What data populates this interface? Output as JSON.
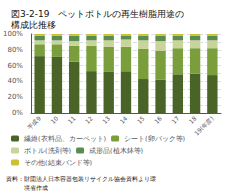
{
  "chart_data": {
    "type": "bar",
    "stacked": true,
    "title": "図3-2-19　ペットボトルの再生樹脂用途の\n構成比推移",
    "categories": [
      "平成9",
      "10",
      "11",
      "12",
      "13",
      "14",
      "15",
      "16",
      "17",
      "18",
      "19(年度)"
    ],
    "series": [
      {
        "name": "繊維(衣料品、カーペット)",
        "color": "#4a6428",
        "values": [
          72,
          71,
          65,
          53,
          52,
          53,
          43,
          42,
          49,
          50,
          48
        ]
      },
      {
        "name": "シート(卵パック等)",
        "color": "#7a9e3c",
        "values": [
          15,
          16,
          20,
          32,
          32,
          31,
          38,
          37,
          33,
          32,
          34
        ]
      },
      {
        "name": "ボトル(洗剤等)",
        "color": "#c8d49a",
        "values": [
          5,
          5,
          6,
          7,
          8,
          9,
          11,
          12,
          10,
          10,
          10
        ]
      },
      {
        "name": "成形品(植木鉢等)",
        "color": "#5a8c50",
        "values": [
          6,
          6,
          7,
          6,
          6,
          5,
          6,
          7,
          6,
          6,
          6
        ]
      },
      {
        "name": "その他(結束バンド等)",
        "color": "#ccc030",
        "values": [
          2,
          2,
          2,
          2,
          2,
          2,
          2,
          2,
          2,
          2,
          2
        ]
      }
    ],
    "ylim": [
      0,
      100
    ],
    "yticks": [
      {
        "value": 0,
        "label": "0%"
      },
      {
        "value": 10,
        "label": ""
      },
      {
        "value": 20,
        "label": "20%"
      },
      {
        "value": 30,
        "label": ""
      },
      {
        "value": 40,
        "label": "40%"
      },
      {
        "value": 50,
        "label": ""
      },
      {
        "value": 60,
        "label": "60%"
      },
      {
        "value": 70,
        "label": ""
      },
      {
        "value": 80,
        "label": "80%"
      },
      {
        "value": 90,
        "label": ""
      },
      {
        "value": 100,
        "label": "100%"
      }
    ],
    "grid": true,
    "legend": "bottom",
    "annotations": [
      "資料：財団法人日本容器包装リサイクル協会資料より環",
      "　　　境省作成"
    ]
  }
}
